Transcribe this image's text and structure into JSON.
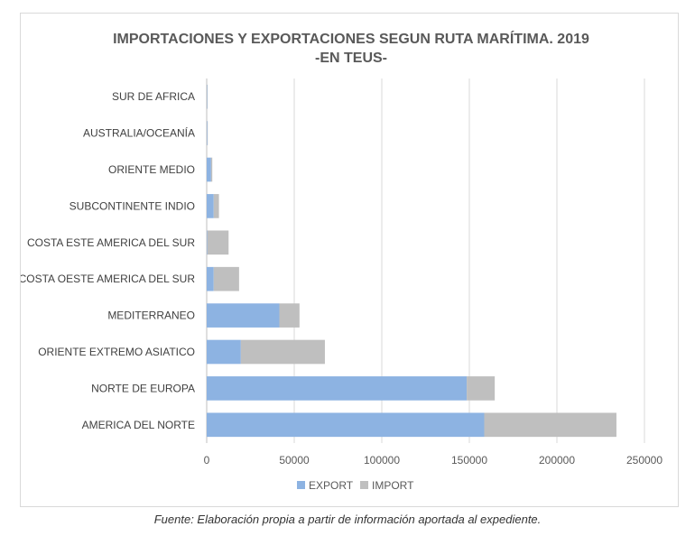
{
  "chart_data": {
    "type": "bar",
    "orientation": "horizontal",
    "stacked": true,
    "title": "IMPORTACIONES Y EXPORTACIONES SEGUN RUTA MARÍTIMA. 2019",
    "subtitle": "-EN TEUS-",
    "categories": [
      "SUR DE AFRICA",
      "AUSTRALIA/OCEANÍA",
      "ORIENTE MEDIO",
      "SUBCONTINENTE INDIO",
      "COSTA ESTE AMERICA DEL SUR",
      "COSTA OESTE AMERICA DEL SUR",
      "MEDITERRANEO",
      "ORIENTE EXTREMO ASIATICO",
      "NORTE DE EUROPA",
      "AMERICA DEL NORTE"
    ],
    "series": [
      {
        "name": "EXPORT",
        "color": "#8db3e2",
        "values": [
          200,
          300,
          2500,
          4000,
          300,
          4000,
          41500,
          19500,
          148500,
          158500
        ]
      },
      {
        "name": "IMPORT",
        "color": "#bfbfbf",
        "values": [
          300,
          300,
          700,
          3000,
          12200,
          14500,
          11500,
          48000,
          16000,
          75500
        ]
      }
    ],
    "xlim": [
      0,
      250000
    ],
    "xticks": [
      "0",
      "50000",
      "100000",
      "150000",
      "200000",
      "250000"
    ],
    "grid": true,
    "legend_position": "bottom"
  },
  "caption": "Fuente: Elaboración propia a partir de información aportada al expediente."
}
